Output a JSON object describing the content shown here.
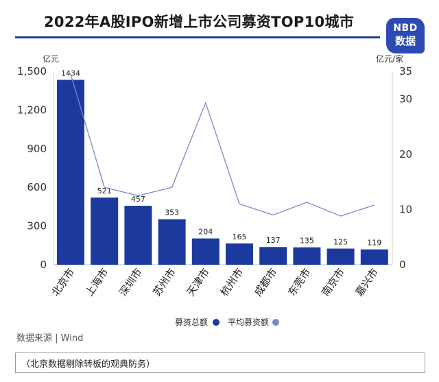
{
  "title": "2022年A股IPO新增上市公司募资TOP10城市",
  "logo": {
    "line1": "NBD",
    "line2": "数据"
  },
  "source": "数据来源 | Wind",
  "note": "（北京数据剔除转板的观典防务）",
  "colors": {
    "bar": "#1c3a9e",
    "line": "#7b88cc",
    "rule": "#1f3f9a",
    "logo": "#2b4bb3"
  },
  "chart_data": {
    "type": "bar",
    "categories": [
      "北京市",
      "上海市",
      "深圳市",
      "苏州市",
      "天津市",
      "杭州市",
      "成都市",
      "东莞市",
      "南京市",
      "嘉兴市"
    ],
    "y_unit_left": "亿元",
    "y_unit_right": "亿元/家",
    "ylim_left": [
      0,
      1500
    ],
    "ylim_right": [
      0,
      35
    ],
    "yticks_left": [
      "0",
      "300",
      "600",
      "900",
      "1,200",
      "1,500"
    ],
    "yticks_left_values": [
      0,
      300,
      600,
      900,
      1200,
      1500
    ],
    "yticks_right": [
      "0",
      "10",
      "20",
      "30",
      "35"
    ],
    "yticks_right_values": [
      0,
      10,
      20,
      30,
      35
    ],
    "legend_position": "bottom",
    "series": [
      {
        "name": "募资总额",
        "type": "bar",
        "axis": "left",
        "values": [
          1434,
          521,
          457,
          353,
          204,
          165,
          137,
          135,
          125,
          119
        ],
        "labels": [
          "1434",
          "521",
          "457",
          "353",
          "204",
          "165",
          "137",
          "135",
          "125",
          "119"
        ]
      },
      {
        "name": "平均募资额",
        "type": "line",
        "axis": "right",
        "values": [
          34.5,
          14.0,
          12.5,
          14.0,
          29.3,
          11.0,
          9.0,
          11.3,
          8.8,
          10.8
        ]
      }
    ]
  }
}
